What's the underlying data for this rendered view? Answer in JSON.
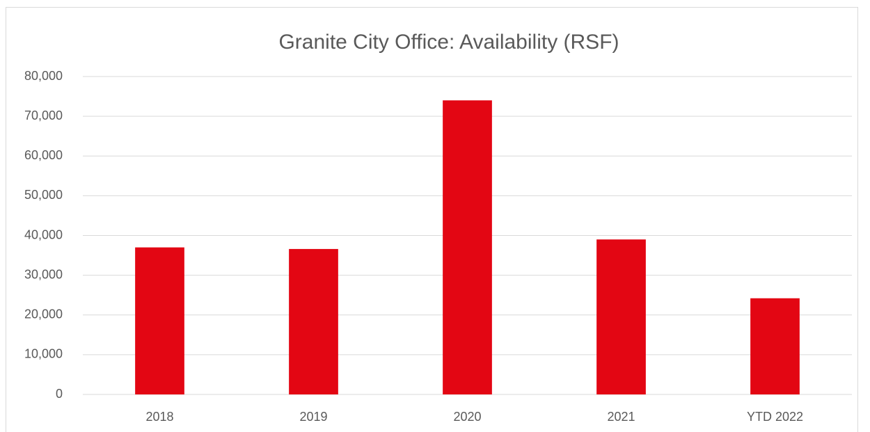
{
  "chart_data": {
    "type": "bar",
    "title": "Granite City Office: Availability (RSF)",
    "categories": [
      "2018",
      "2019",
      "2020",
      "2021",
      "YTD 2022"
    ],
    "values": [
      37000,
      36600,
      74000,
      39000,
      24200
    ],
    "color": "#e30613",
    "ylim": [
      0,
      80000
    ],
    "yticks": [
      0,
      {
        "value": 10000,
        "label": "10,000"
      },
      {
        "value": 20000,
        "label": "20,000"
      },
      {
        "value": 30000,
        "label": "30,000"
      },
      {
        "value": 40000,
        "label": "40,000"
      },
      {
        "value": 50000,
        "label": "50,000"
      },
      {
        "value": 60000,
        "label": "60,000"
      },
      {
        "value": 70000,
        "label": "70,000"
      },
      {
        "value": 80000,
        "label": "80,000"
      }
    ],
    "grid": true
  }
}
